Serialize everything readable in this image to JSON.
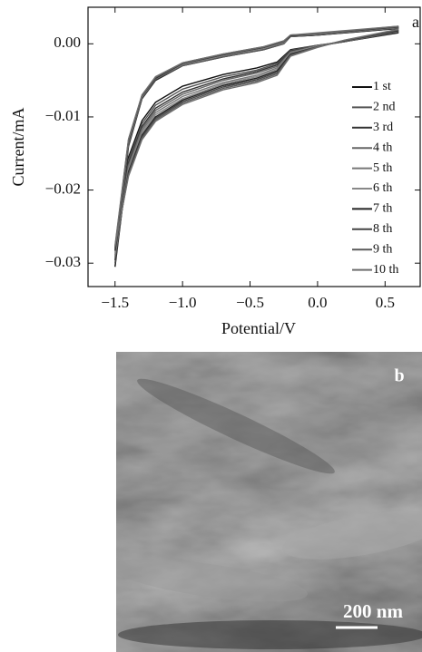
{
  "chart_data": {
    "type": "line",
    "panel_label": "a",
    "x_label": "Potential/V",
    "y_label": "Current/mA",
    "xlim": [
      -1.7,
      0.76
    ],
    "ylim": [
      -0.0332,
      0.005
    ],
    "xticks": [
      {
        "value": -1.5,
        "label": "−1.5"
      },
      {
        "value": -1.0,
        "label": "−1.0"
      },
      {
        "value": -0.5,
        "label": "−0.5"
      },
      {
        "value": 0.0,
        "label": "0.0"
      },
      0.5
    ],
    "yticks": [
      {
        "value": 0.0,
        "label": "0.00"
      },
      {
        "value": -0.01,
        "label": "−0.01"
      },
      {
        "value": -0.02,
        "label": "−0.02"
      },
      {
        "value": -0.03,
        "label": "−0.03"
      }
    ],
    "x": [
      0.6,
      0.2,
      0.0,
      -0.2,
      -0.3,
      -0.45,
      -0.7,
      -1.0,
      -1.2,
      -1.3,
      -1.4,
      -1.5,
      -1.4,
      -1.3,
      -1.2,
      -1.0,
      -0.7,
      -0.4,
      -0.25,
      -0.2,
      0.0,
      0.6
    ],
    "series": [
      {
        "name": "1 st",
        "color": "#111111",
        "values": [
          0.0015,
          0.0003,
          -0.0002,
          -0.0008,
          -0.0025,
          -0.0033,
          -0.0042,
          -0.0058,
          -0.008,
          -0.0105,
          -0.0155,
          -0.0305,
          -0.014,
          -0.0075,
          -0.005,
          -0.003,
          -0.0018,
          -0.0008,
          0.0,
          0.001,
          0.0012,
          0.0022
        ]
      },
      {
        "name": "2 nd",
        "color": "#555555",
        "values": [
          0.0016,
          0.0003,
          -0.0002,
          -0.0009,
          -0.0027,
          -0.0036,
          -0.0045,
          -0.0062,
          -0.0084,
          -0.0109,
          -0.0159,
          -0.03,
          -0.0138,
          -0.0074,
          -0.0049,
          -0.003,
          -0.0018,
          -0.0008,
          0.0,
          0.001,
          0.0012,
          0.0021
        ]
      },
      {
        "name": "3 rd",
        "color": "#333333",
        "values": [
          0.0016,
          0.0003,
          -0.0003,
          -0.001,
          -0.0029,
          -0.0038,
          -0.0048,
          -0.0066,
          -0.0088,
          -0.0113,
          -0.0163,
          -0.0296,
          -0.0137,
          -0.0073,
          -0.0049,
          -0.0029,
          -0.0017,
          -0.0007,
          0.0001,
          0.001,
          0.0012,
          0.0021
        ]
      },
      {
        "name": "4 th",
        "color": "#666666",
        "values": [
          0.0017,
          0.0003,
          -0.0003,
          -0.0011,
          -0.0031,
          -0.004,
          -0.005,
          -0.0069,
          -0.0091,
          -0.0116,
          -0.0166,
          -0.0292,
          -0.0136,
          -0.0073,
          -0.0048,
          -0.0029,
          -0.0017,
          -0.0007,
          0.0001,
          0.001,
          0.0013,
          0.0022
        ]
      },
      {
        "name": "5 th",
        "color": "#777777",
        "values": [
          0.0017,
          0.0004,
          -0.0003,
          -0.0012,
          -0.0033,
          -0.0043,
          -0.0053,
          -0.0072,
          -0.0094,
          -0.0119,
          -0.0169,
          -0.0289,
          -0.0135,
          -0.0072,
          -0.0048,
          -0.0028,
          -0.0016,
          -0.0006,
          0.0002,
          0.0011,
          0.0013,
          0.0022
        ]
      },
      {
        "name": "6 th",
        "color": "#888888",
        "values": [
          0.0018,
          0.0004,
          -0.0003,
          -0.0013,
          -0.0035,
          -0.0045,
          -0.0055,
          -0.0075,
          -0.0097,
          -0.0122,
          -0.0172,
          -0.0286,
          -0.0134,
          -0.0072,
          -0.0047,
          -0.0028,
          -0.0016,
          -0.0006,
          0.0002,
          0.0011,
          0.0013,
          0.0023
        ]
      },
      {
        "name": "7 th",
        "color": "#222222",
        "values": [
          0.0018,
          0.0004,
          -0.0004,
          -0.0014,
          -0.0037,
          -0.0047,
          -0.0057,
          -0.0077,
          -0.01,
          -0.0125,
          -0.0175,
          -0.0283,
          -0.0133,
          -0.0071,
          -0.0047,
          -0.0027,
          -0.0015,
          -0.0005,
          0.0003,
          0.0011,
          0.0014,
          0.0023
        ]
      },
      {
        "name": "8 th",
        "color": "#444444",
        "values": [
          0.0019,
          0.0004,
          -0.0004,
          -0.0015,
          -0.0039,
          -0.0049,
          -0.0059,
          -0.0079,
          -0.0102,
          -0.0127,
          -0.0177,
          -0.028,
          -0.0132,
          -0.0071,
          -0.0046,
          -0.0027,
          -0.0015,
          -0.0005,
          0.0003,
          0.0012,
          0.0014,
          0.0023
        ]
      },
      {
        "name": "9 th",
        "color": "#5a5a5a",
        "values": [
          0.0019,
          0.0005,
          -0.0004,
          -0.0016,
          -0.0041,
          -0.0051,
          -0.0061,
          -0.0081,
          -0.0104,
          -0.0129,
          -0.0179,
          -0.0278,
          -0.0131,
          -0.007,
          -0.0046,
          -0.0026,
          -0.0014,
          -0.0004,
          0.0004,
          0.0012,
          0.0014,
          0.0024
        ]
      },
      {
        "name": "10 th",
        "color": "#6e6e6e",
        "values": [
          0.002,
          0.0005,
          -0.0005,
          -0.0017,
          -0.0043,
          -0.0053,
          -0.0063,
          -0.0083,
          -0.0106,
          -0.0131,
          -0.0181,
          -0.0276,
          -0.013,
          -0.007,
          -0.0045,
          -0.0026,
          -0.0014,
          -0.0004,
          0.0004,
          0.0012,
          0.0015,
          0.0024
        ]
      }
    ]
  },
  "sem_image": {
    "label": "b",
    "scale_bar": "200 nm"
  }
}
